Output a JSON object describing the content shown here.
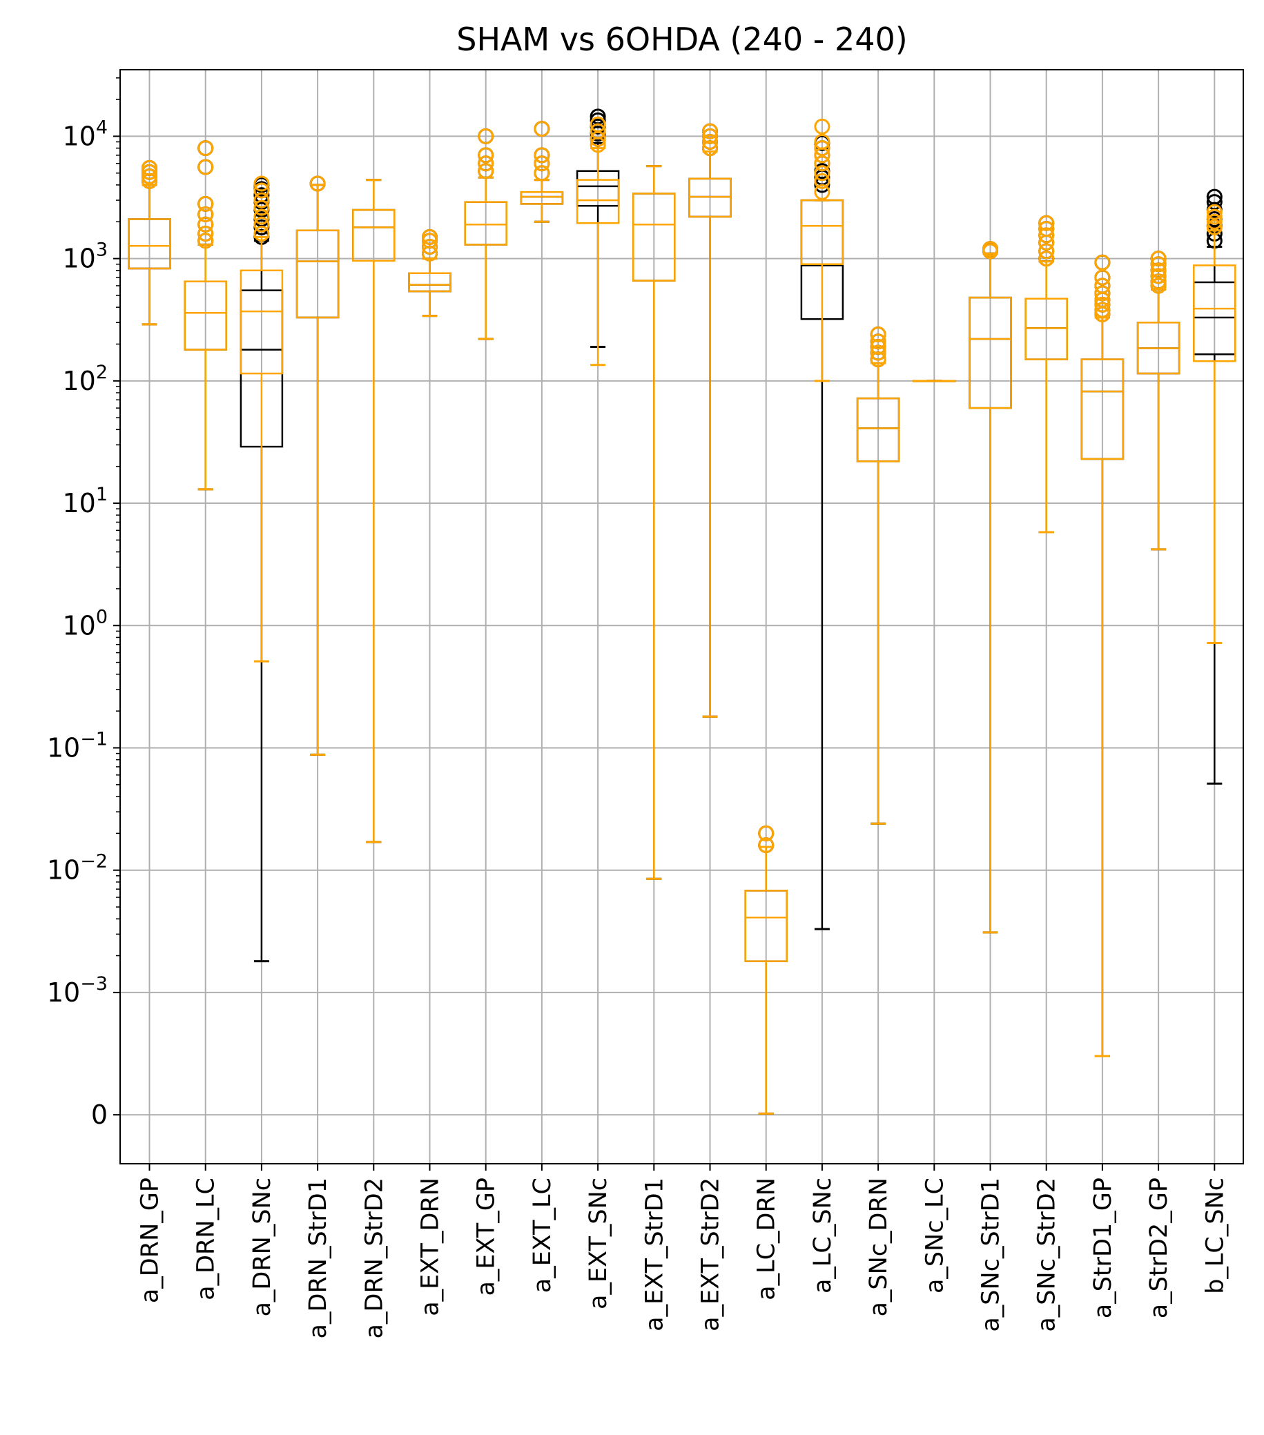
{
  "chart_data": {
    "type": "box",
    "title": "SHAM vs 6OHDA (240 - 240)",
    "xlabel": "",
    "ylabel": "",
    "yscale": "symlog",
    "linthresh": 0.001,
    "ylim": [
      -0.0004,
      35000
    ],
    "grid": true,
    "yticks": [
      {
        "value": 0,
        "base": "0",
        "exp": ""
      },
      {
        "value": 0.001,
        "base": "10",
        "exp": "−3"
      },
      {
        "value": 0.01,
        "base": "10",
        "exp": "−2"
      },
      {
        "value": 0.1,
        "base": "10",
        "exp": "−1"
      },
      {
        "value": 1,
        "base": "10",
        "exp": "0"
      },
      {
        "value": 10,
        "base": "10",
        "exp": "1"
      },
      {
        "value": 100,
        "base": "10",
        "exp": "2"
      },
      {
        "value": 1000,
        "base": "10",
        "exp": "3"
      },
      {
        "value": 10000,
        "base": "10",
        "exp": "4"
      }
    ],
    "categories": [
      "a_DRN_GP",
      "a_DRN_LC",
      "a_DRN_SNc",
      "a_DRN_StrD1",
      "a_DRN_StrD2",
      "a_EXT_DRN",
      "a_EXT_GP",
      "a_EXT_LC",
      "a_EXT_SNc",
      "a_EXT_StrD1",
      "a_EXT_StrD2",
      "a_LC_DRN",
      "a_LC_SNc",
      "a_SNc_DRN",
      "a_SNc_LC",
      "a_SNc_StrD1",
      "a_SNc_StrD2",
      "a_StrD1_GP",
      "a_StrD2_GP",
      "b_LC_SNc"
    ],
    "series": [
      {
        "name": "SHAM",
        "color": "#000000",
        "boxes": [
          {
            "wlo": 290,
            "q1": 830,
            "med": 1270,
            "q3": 2100,
            "whi": 4000,
            "fliers": [
              4300,
              4700,
              5100,
              5500
            ]
          },
          {
            "wlo": 13,
            "q1": 180,
            "med": 360,
            "q3": 650,
            "whi": 1300,
            "fliers": [
              1400,
              1600,
              1900,
              2300,
              2800,
              5600,
              8000
            ]
          },
          {
            "wlo": 0.0018,
            "q1": 29,
            "med": 180,
            "q3": 550,
            "whi": 1400,
            "fliers": [
              1500,
              1800,
              2100,
              2500,
              2900,
              3300,
              3700,
              4000
            ]
          },
          {
            "wlo": 0.088,
            "q1": 330,
            "med": 950,
            "q3": 1700,
            "whi": 4000,
            "fliers": [
              4100
            ]
          },
          {
            "wlo": 0.017,
            "q1": 960,
            "med": 1800,
            "q3": 2500,
            "whi": 4400,
            "fliers": []
          },
          {
            "wlo": 340,
            "q1": 540,
            "med": 610,
            "q3": 760,
            "whi": 1000,
            "fliers": [
              1100,
              1250,
              1400,
              1500
            ]
          },
          {
            "wlo": 220,
            "q1": 1300,
            "med": 1900,
            "q3": 2900,
            "whi": 4600,
            "fliers": [
              5200,
              6000,
              7000,
              10000
            ]
          },
          {
            "wlo": 2000,
            "q1": 2800,
            "med": 3200,
            "q3": 3500,
            "whi": 4400,
            "fliers": [
              5000,
              6000,
              7000,
              11500
            ]
          },
          {
            "wlo": 190,
            "q1": 2700,
            "med": 3900,
            "q3": 5200,
            "whi": 8800,
            "fliers": [
              9500,
              10500,
              12000,
              13500,
              14500
            ]
          },
          {
            "wlo": 0.0085,
            "q1": 660,
            "med": 1900,
            "q3": 3400,
            "whi": 5700,
            "fliers": []
          },
          {
            "wlo": 0.18,
            "q1": 2200,
            "med": 3200,
            "q3": 4500,
            "whi": 7500,
            "fliers": [
              8000,
              9000,
              10000,
              11000
            ]
          },
          {
            "wlo": 1e-05,
            "q1": 0.0018,
            "med": 0.0041,
            "q3": 0.0068,
            "whi": 0.0155,
            "fliers": [
              0.016,
              0.02
            ]
          },
          {
            "wlo": 0.0033,
            "q1": 320,
            "med": 880,
            "q3": 3000,
            "whi": 3000,
            "fliers": [
              4000,
              4600,
              5200,
              6000,
              7000,
              8000,
              8800
            ]
          },
          {
            "wlo": 0.024,
            "q1": 22,
            "med": 41,
            "q3": 72,
            "whi": 140,
            "fliers": [
              150,
              170,
              190,
              210,
              240
            ]
          },
          {
            "wlo": 100,
            "q1": 100,
            "med": 100,
            "q3": 100,
            "whi": 100,
            "fliers": []
          },
          {
            "wlo": 0.0031,
            "q1": 60,
            "med": 220,
            "q3": 480,
            "whi": 1100,
            "fliers": [
              1150,
              1200
            ]
          },
          {
            "wlo": 5.8,
            "q1": 150,
            "med": 270,
            "q3": 470,
            "whi": 950,
            "fliers": [
              1000,
              1150,
              1350,
              1550,
              1750,
              1950
            ]
          },
          {
            "wlo": 0.00048,
            "q1": 23,
            "med": 82,
            "q3": 150,
            "whi": 330,
            "fliers": [
              350,
              380,
              420,
              460,
              520,
              600,
              700,
              930
            ]
          },
          {
            "wlo": 4.2,
            "q1": 115,
            "med": 185,
            "q3": 300,
            "whi": 560,
            "fliers": [
              600,
              650,
              720,
              800,
              900,
              1000
            ]
          },
          {
            "wlo": 0.051,
            "q1": 165,
            "med": 330,
            "q3": 640,
            "whi": 1250,
            "fliers": [
              1400,
              1600,
              1850,
              2100,
              2500,
              2900,
              3200
            ]
          }
        ]
      },
      {
        "name": "6OHDA",
        "color": "#FFA500",
        "boxes": [
          {
            "wlo": 290,
            "q1": 830,
            "med": 1270,
            "q3": 2100,
            "whi": 4000,
            "fliers": [
              4300,
              4700,
              5100,
              5500
            ]
          },
          {
            "wlo": 13,
            "q1": 180,
            "med": 360,
            "q3": 650,
            "whi": 1300,
            "fliers": [
              1400,
              1600,
              1900,
              2300,
              2800,
              5600,
              8000
            ]
          },
          {
            "wlo": 0.51,
            "q1": 115,
            "med": 370,
            "q3": 800,
            "whi": 1500,
            "fliers": [
              1600,
              1900,
              2200,
              2600,
              3000,
              3600,
              4100
            ]
          },
          {
            "wlo": 0.088,
            "q1": 330,
            "med": 950,
            "q3": 1700,
            "whi": 4000,
            "fliers": [
              4100
            ]
          },
          {
            "wlo": 0.017,
            "q1": 960,
            "med": 1800,
            "q3": 2500,
            "whi": 4400,
            "fliers": []
          },
          {
            "wlo": 340,
            "q1": 540,
            "med": 610,
            "q3": 760,
            "whi": 1000,
            "fliers": [
              1100,
              1250,
              1400,
              1500
            ]
          },
          {
            "wlo": 220,
            "q1": 1300,
            "med": 1900,
            "q3": 2900,
            "whi": 4600,
            "fliers": [
              5200,
              6000,
              7000,
              10000
            ]
          },
          {
            "wlo": 2000,
            "q1": 2800,
            "med": 3200,
            "q3": 3500,
            "whi": 4400,
            "fliers": [
              5000,
              6000,
              7000,
              11500
            ]
          },
          {
            "wlo": 135,
            "q1": 1950,
            "med": 3000,
            "q3": 4400,
            "whi": 8000,
            "fliers": [
              8500,
              9500,
              11000,
              12500
            ]
          },
          {
            "wlo": 0.0085,
            "q1": 660,
            "med": 1900,
            "q3": 3400,
            "whi": 5700,
            "fliers": []
          },
          {
            "wlo": 0.18,
            "q1": 2200,
            "med": 3200,
            "q3": 4500,
            "whi": 7500,
            "fliers": [
              8000,
              9000,
              10000,
              11000
            ]
          },
          {
            "wlo": 1e-05,
            "q1": 0.0018,
            "med": 0.0041,
            "q3": 0.0068,
            "whi": 0.0155,
            "fliers": [
              0.016,
              0.02
            ]
          },
          {
            "wlo": 100,
            "q1": 900,
            "med": 1850,
            "q3": 3000,
            "whi": 3000,
            "fliers": [
              3500,
              4300,
              5000,
              6000,
              7000,
              8000,
              9000,
              12000
            ]
          },
          {
            "wlo": 0.024,
            "q1": 22,
            "med": 41,
            "q3": 72,
            "whi": 140,
            "fliers": [
              150,
              170,
              190,
              210,
              240
            ]
          },
          {
            "wlo": 100,
            "q1": 100,
            "med": 100,
            "q3": 100,
            "whi": 100,
            "fliers": []
          },
          {
            "wlo": 0.0031,
            "q1": 60,
            "med": 220,
            "q3": 480,
            "whi": 1100,
            "fliers": [
              1150,
              1200
            ]
          },
          {
            "wlo": 5.8,
            "q1": 150,
            "med": 270,
            "q3": 470,
            "whi": 950,
            "fliers": [
              1000,
              1150,
              1350,
              1550,
              1750,
              1950
            ]
          },
          {
            "wlo": 0.00048,
            "q1": 23,
            "med": 82,
            "q3": 150,
            "whi": 330,
            "fliers": [
              350,
              380,
              420,
              460,
              520,
              600,
              700,
              930
            ]
          },
          {
            "wlo": 4.2,
            "q1": 115,
            "med": 185,
            "q3": 300,
            "whi": 560,
            "fliers": [
              600,
              650,
              720,
              800,
              900,
              1000
            ]
          },
          {
            "wlo": 0.72,
            "q1": 145,
            "med": 390,
            "q3": 880,
            "whi": 1700,
            "fliers": [
              1800,
              2000,
              2200,
              2400
            ]
          }
        ]
      }
    ]
  }
}
